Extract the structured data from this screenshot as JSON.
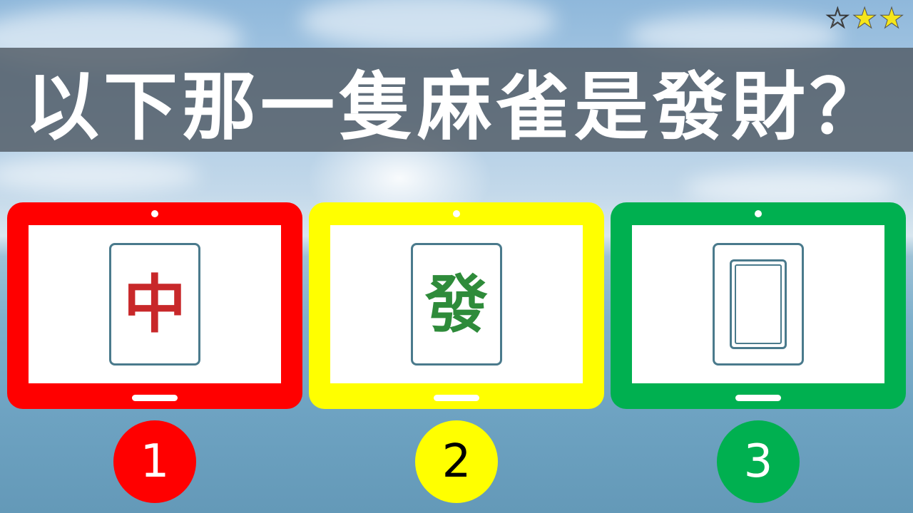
{
  "question": {
    "title": "以下那一隻麻雀是發財？"
  },
  "difficulty": {
    "stars": [
      "☆",
      "★",
      "★"
    ]
  },
  "options": [
    {
      "number": "1",
      "tile_char": "中",
      "tile_color": "#c8282a",
      "frame_color": "#ff0000",
      "badge_color": "#ff0000",
      "badge_text_color": "#ffffff"
    },
    {
      "number": "2",
      "tile_char": "發",
      "tile_color": "#2e8b3a",
      "frame_color": "#ffff00",
      "badge_color": "#ffff00",
      "badge_text_color": "#000000"
    },
    {
      "number": "3",
      "tile_char": "",
      "tile_color": "#4a7a8c",
      "frame_color": "#00b050",
      "badge_color": "#00b050",
      "badge_text_color": "#ffffff"
    }
  ]
}
